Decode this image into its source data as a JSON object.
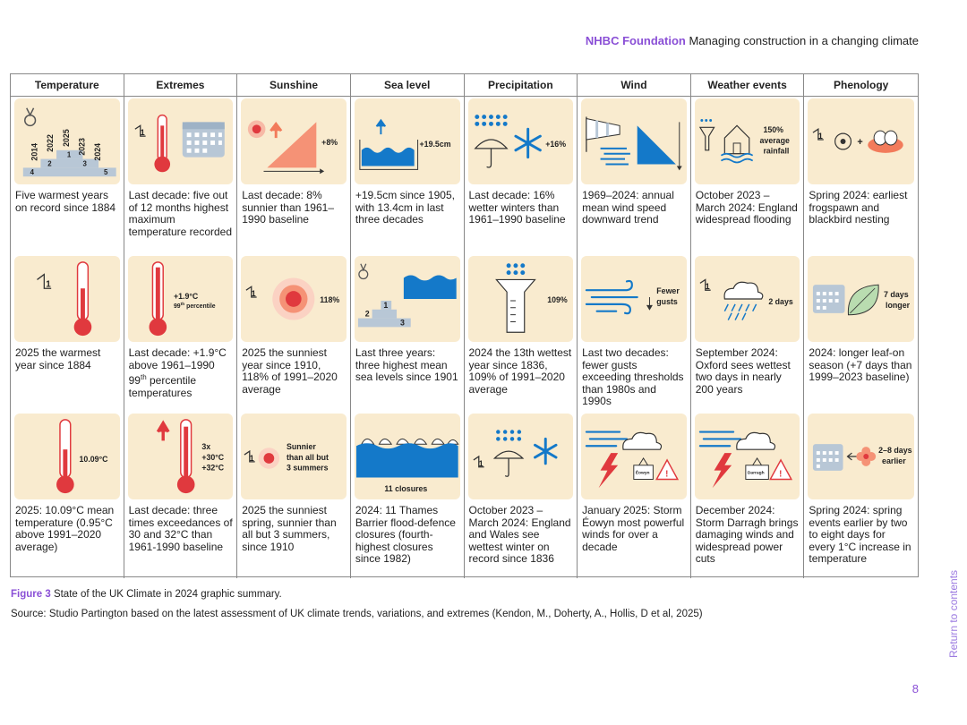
{
  "header": {
    "brand": "NHBC Foundation",
    "title": "Managing construction in a changing climate"
  },
  "columns": [
    "Temperature",
    "Extremes",
    "Sunshine",
    "Sea level",
    "Precipitation",
    "Wind",
    "Weather events",
    "Phenology"
  ],
  "rows": [
    {
      "cells": [
        {
          "caption": "Five warmest years on record since 1884",
          "years": [
            "2014",
            "2022",
            "2025",
            "2023",
            "2024"
          ],
          "ranks": [
            "4",
            "2",
            "1",
            "3",
            "5"
          ]
        },
        {
          "caption": "Last decade: five out of 12 months highest maximum temperature recorded",
          "rank": "1"
        },
        {
          "caption": "Last decade: 8% sunnier than 1961–1990 baseline",
          "value": "+8%"
        },
        {
          "caption": "+19.5cm since 1905, with 13.4cm in last three decades",
          "value": "+19.5cm"
        },
        {
          "caption": "Last decade: 16% wetter winters than 1961–1990 baseline",
          "value": "+16%"
        },
        {
          "caption": "1969–2024: annual mean wind speed downward trend"
        },
        {
          "caption": "October 2023 – March 2024: England widespread flooding",
          "value_lines": [
            "150%",
            "average",
            "rainfall"
          ]
        },
        {
          "caption": "Spring 2024: earliest frogspawn and blackbird nesting",
          "rank": "1"
        }
      ]
    },
    {
      "cells": [
        {
          "caption": "2025 the warmest year since 1884",
          "rank": "1"
        },
        {
          "caption_parts": [
            "Last decade: +1.9°C above 1961–1990 99",
            "th",
            " percentile temperatures"
          ],
          "value": "+1.9°C",
          "sub_value": "99",
          "sub_sup": "th",
          "sub_rest": " percentile"
        },
        {
          "caption": "2025 the sunniest year since 1910, 118% of 1991–2020 average",
          "value": "118%",
          "rank": "1"
        },
        {
          "caption": "Last three years: three highest mean sea levels since 1901",
          "ranks": [
            "2",
            "1",
            "3"
          ]
        },
        {
          "caption": "2024 the 13th wettest year since 1836, 109% of 1991–2020 average",
          "value": "109%"
        },
        {
          "caption": "Last two decades: fewer gusts exceeding thresholds than 1980s and 1990s",
          "value_lines": [
            "Fewer",
            "gusts"
          ]
        },
        {
          "caption": "September 2024: Oxford sees wettest two days in nearly 200 years",
          "value": "2 days",
          "rank": "1"
        },
        {
          "caption": "2024: longer leaf-on season (+7 days than 1999–2023 baseline)",
          "value_lines": [
            "7 days",
            "longer"
          ]
        }
      ]
    },
    {
      "cells": [
        {
          "caption": "2025: 10.09°C mean temperature (0.95°C above 1991–2020 average)",
          "value": "10.09°C"
        },
        {
          "caption": "Last decade: three times exceedances of 30 and 32°C than 1961-1990 baseline",
          "value_lines": [
            "3x",
            "+30°C",
            "+32°C"
          ]
        },
        {
          "caption": "2025 the sunniest spring, sunnier than all but 3 summers, since 1910",
          "value_lines": [
            "Sunnier",
            "than all but",
            "3 summers"
          ],
          "rank": "1"
        },
        {
          "caption": "2024: 11 Thames Barrier flood-defence closures (fourth-highest closures since 1982)",
          "value": "11 closures"
        },
        {
          "caption": "October 2023 – March 2024: England and Wales see wettest winter on record since 1836",
          "rank": "1"
        },
        {
          "caption": "January 2025: Storm Éowyn most powerful winds for over a decade",
          "tag": "Éowyn"
        },
        {
          "caption": "December 2024: Storm Darragh brings damaging winds and widespread power cuts",
          "tag": "Darragh"
        },
        {
          "caption": "Spring 2024: spring events earlier by two to eight days for every 1°C increase in temperature",
          "value_lines": [
            "2–8 days",
            "earlier"
          ]
        }
      ]
    }
  ],
  "figure": {
    "label": "Figure 3",
    "text": "State of the UK Climate in 2024 graphic summary."
  },
  "source": "Source: Studio Partington based on the latest assessment of UK climate trends, variations, and extremes (Kendon, M., Doherty, A., Hollis, D et al, 2025)",
  "side_link": "Return to contents",
  "page_number": "8",
  "colors": {
    "accent": "#8a4fd6",
    "tile": "#f9ebcf",
    "red": "#e0393e",
    "blue": "#1479c9",
    "pale_blue": "#b8c7d6"
  }
}
